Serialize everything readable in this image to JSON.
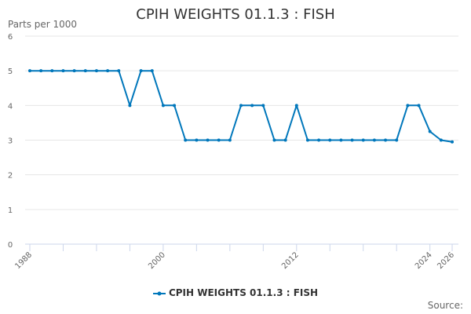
{
  "chart_data": {
    "type": "line",
    "title": "CPIH WEIGHTS 01.1.3 : FISH",
    "ylabel": "Parts per 1000",
    "xlabel": "",
    "ylim": [
      0,
      6
    ],
    "yticks": [
      0,
      1,
      2,
      3,
      4,
      5,
      6
    ],
    "xtick_labels": [
      "1988",
      "2000",
      "2012",
      "2024",
      "2026"
    ],
    "grid": true,
    "legend_position": "bottom",
    "x": [
      1988,
      1989,
      1990,
      1991,
      1992,
      1993,
      1994,
      1995,
      1996,
      1997,
      1998,
      1999,
      2000,
      2001,
      2002,
      2003,
      2004,
      2005,
      2006,
      2007,
      2008,
      2009,
      2010,
      2011,
      2012,
      2013,
      2014,
      2015,
      2016,
      2017,
      2018,
      2019,
      2020,
      2021,
      2022,
      2023,
      2024,
      2025,
      2026
    ],
    "series": [
      {
        "name": "CPIH WEIGHTS 01.1.3 : FISH",
        "color": "#0077bb",
        "values": [
          5,
          5,
          5,
          5,
          5,
          5,
          5,
          5,
          5,
          4,
          5,
          5,
          4,
          4,
          3,
          3,
          3,
          3,
          3,
          4,
          4,
          4,
          3,
          3,
          4,
          3,
          3,
          3,
          3,
          3,
          3,
          3,
          3,
          3,
          4,
          4,
          3.25,
          3.0,
          2.95
        ]
      }
    ]
  },
  "title": "CPIH WEIGHTS 01.1.3 : FISH",
  "ylabel": "Parts per 1000",
  "legend": {
    "label": "CPIH WEIGHTS 01.1.3 : FISH"
  },
  "source": "Source:"
}
